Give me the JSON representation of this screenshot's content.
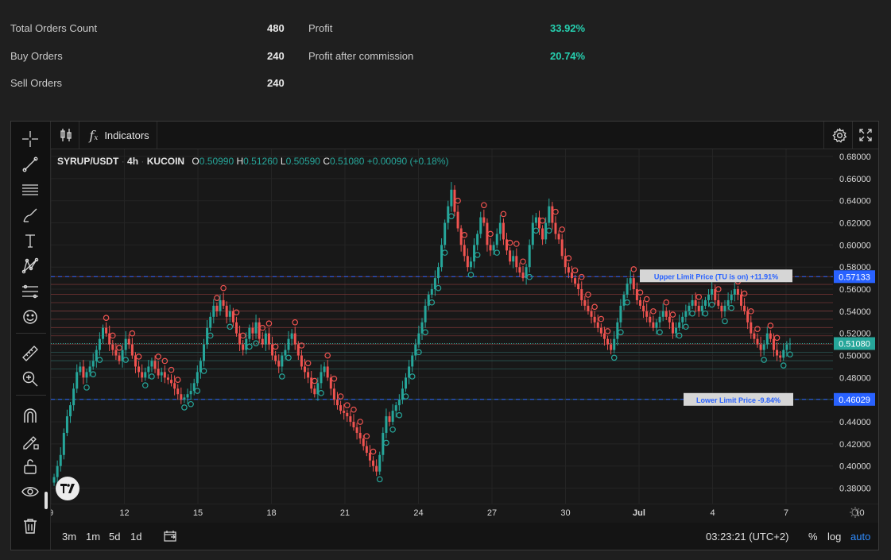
{
  "stats": {
    "total_orders_label": "Total Orders Count",
    "total_orders_value": "480",
    "buy_orders_label": "Buy Orders",
    "buy_orders_value": "240",
    "sell_orders_label": "Sell Orders",
    "sell_orders_value": "240",
    "profit_label": "Profit",
    "profit_value": "33.92%",
    "profit_after_label": "Profit after commission",
    "profit_after_value": "20.74%"
  },
  "toolbar": {
    "indicators_label": "Indicators",
    "left_tools": [
      "crosshair-icon",
      "trend-line-icon",
      "horizontal-lines-icon",
      "brush-icon",
      "text-icon",
      "pattern-icon",
      "measure-lines-icon",
      "emoji-icon",
      "ruler-icon",
      "zoom-in-icon",
      "magnet-icon",
      "lock-drawing-icon",
      "unlock-icon",
      "eye-icon",
      "trash-icon"
    ]
  },
  "legend": {
    "symbol": "SYRUP/USDT",
    "interval": "4h",
    "exchange": "KUCOIN",
    "o_label": "O",
    "o": "0.50990",
    "h_label": "H",
    "h": "0.51260",
    "l_label": "L",
    "l": "0.50590",
    "c_label": "C",
    "c": "0.51080",
    "change": "+0.00090 (+0.18%)"
  },
  "bottom": {
    "ranges": [
      "3m",
      "1m",
      "5d",
      "1d"
    ],
    "time": "03:23:21 (UTC+2)",
    "percent": "%",
    "log": "log",
    "auto": "auto"
  },
  "colors": {
    "up": "#26a69a",
    "down": "#ef5350",
    "blue": "#2962ff",
    "pct": "#26d0b0"
  },
  "chart_data": {
    "type": "candlestick",
    "y_ticks": [
      "0.68000",
      "0.66000",
      "0.64000",
      "0.62000",
      "0.60000",
      "0.58000",
      "0.56000",
      "0.54000",
      "0.52000",
      "0.50000",
      "0.48000",
      "0.46000",
      "0.44000",
      "0.42000",
      "0.40000",
      "0.38000"
    ],
    "ylim": [
      0.366,
      0.6865
    ],
    "x_ticks": [
      "9",
      "12",
      "15",
      "18",
      "21",
      "24",
      "27",
      "30",
      "Jul",
      "4",
      "7",
      "10"
    ],
    "current_price": "0.51080",
    "upper_limit": {
      "price": "0.57133",
      "label": "Upper Limit Price  (TU is on) +11.91%"
    },
    "lower_limit": {
      "price": "0.46029",
      "label": "Lower Limit Price  -9.84%"
    },
    "grid_levels": [
      0.5713,
      0.5643,
      0.5553,
      0.5478,
      0.5403,
      0.5328,
      0.5253,
      0.5178,
      0.5103,
      0.5028,
      0.4953,
      0.4878,
      0.4603
    ],
    "closes": [
      0.39,
      0.4,
      0.41,
      0.43,
      0.445,
      0.455,
      0.47,
      0.485,
      0.49,
      0.48,
      0.485,
      0.49,
      0.495,
      0.505,
      0.515,
      0.525,
      0.52,
      0.51,
      0.505,
      0.5,
      0.495,
      0.505,
      0.515,
      0.51,
      0.5,
      0.49,
      0.485,
      0.48,
      0.485,
      0.49,
      0.495,
      0.488,
      0.482,
      0.485,
      0.48,
      0.478,
      0.475,
      0.47,
      0.465,
      0.46,
      0.462,
      0.465,
      0.468,
      0.475,
      0.485,
      0.495,
      0.51,
      0.525,
      0.535,
      0.545,
      0.54,
      0.55,
      0.545,
      0.535,
      0.54,
      0.53,
      0.52,
      0.51,
      0.505,
      0.515,
      0.525,
      0.52,
      0.53,
      0.515,
      0.51,
      0.52,
      0.51,
      0.5,
      0.495,
      0.49,
      0.5,
      0.505,
      0.515,
      0.52,
      0.51,
      0.5,
      0.49,
      0.485,
      0.48,
      0.47,
      0.465,
      0.475,
      0.485,
      0.49,
      0.48,
      0.47,
      0.46,
      0.455,
      0.45,
      0.448,
      0.445,
      0.44,
      0.435,
      0.43,
      0.425,
      0.418,
      0.412,
      0.405,
      0.4,
      0.395,
      0.41,
      0.43,
      0.445,
      0.44,
      0.45,
      0.455,
      0.46,
      0.47,
      0.48,
      0.49,
      0.5,
      0.51,
      0.52,
      0.53,
      0.545,
      0.555,
      0.56,
      0.57,
      0.58,
      0.6,
      0.62,
      0.635,
      0.65,
      0.63,
      0.615,
      0.6,
      0.59,
      0.58,
      0.585,
      0.6,
      0.61,
      0.625,
      0.62,
      0.6,
      0.595,
      0.6,
      0.61,
      0.62,
      0.605,
      0.595,
      0.585,
      0.59,
      0.58,
      0.575,
      0.57,
      0.58,
      0.6,
      0.62,
      0.625,
      0.615,
      0.605,
      0.62,
      0.635,
      0.62,
      0.61,
      0.605,
      0.59,
      0.58,
      0.575,
      0.57,
      0.565,
      0.56,
      0.55,
      0.545,
      0.54,
      0.535,
      0.53,
      0.525,
      0.52,
      0.515,
      0.51,
      0.505,
      0.515,
      0.53,
      0.545,
      0.555,
      0.565,
      0.57,
      0.56,
      0.55,
      0.545,
      0.54,
      0.535,
      0.53,
      0.525,
      0.53,
      0.535,
      0.54,
      0.535,
      0.53,
      0.52,
      0.525,
      0.53,
      0.535,
      0.54,
      0.545,
      0.55,
      0.545,
      0.54,
      0.545,
      0.55,
      0.555,
      0.56,
      0.55,
      0.545,
      0.54,
      0.545,
      0.55,
      0.555,
      0.56,
      0.555,
      0.545,
      0.54,
      0.53,
      0.52,
      0.515,
      0.51,
      0.505,
      0.51,
      0.52,
      0.515,
      0.505,
      0.5,
      0.498,
      0.505,
      0.51,
      0.5108
    ]
  }
}
